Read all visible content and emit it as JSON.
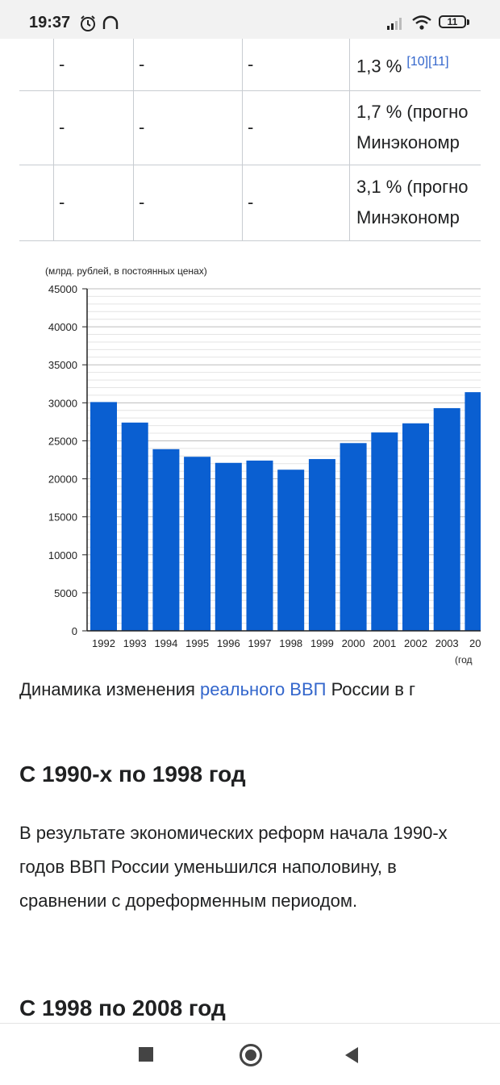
{
  "status_bar": {
    "time": "19:37",
    "battery": "11"
  },
  "table": {
    "rows": [
      {
        "c1": "-",
        "c2": "-",
        "c3": "-",
        "value": "1,3 %",
        "refs": "[10][11]",
        "note": ""
      },
      {
        "c1": "-",
        "c2": "-",
        "c3": "-",
        "value": "1,7 % (прогно",
        "refs": "",
        "note": "Минэкономр"
      },
      {
        "c1": "-",
        "c2": "-",
        "c3": "-",
        "value": "3,1 % (прогно",
        "refs": "",
        "note": "Минэкономр"
      }
    ]
  },
  "chart_data": {
    "type": "bar",
    "ylabel": "(млрд. рублей, в постоянных ценах)",
    "xlabel": "(год",
    "categories": [
      "1992",
      "1993",
      "1994",
      "1995",
      "1996",
      "1997",
      "1998",
      "1999",
      "2000",
      "2001",
      "2002",
      "2003",
      "200"
    ],
    "values": [
      30100,
      27400,
      23900,
      22900,
      22100,
      22400,
      21200,
      22600,
      24700,
      26100,
      27300,
      29300,
      31400
    ],
    "ylim": [
      0,
      45000
    ],
    "yticks": [
      "0",
      "5000",
      "10000",
      "15000",
      "20000",
      "25000",
      "30000",
      "35000",
      "40000",
      "45000"
    ],
    "bar_color": "#0a5fd1",
    "grid": true
  },
  "caption": {
    "before": "Динамика изменения ",
    "link": "реального ВВП",
    "after": " России в г"
  },
  "section1": {
    "heading": "С 1990-х по 1998 год",
    "paragraph": "В результате экономических реформ начала 1990-х годов ВВП России уменьшился наполовину, в сравнении с дореформенным периодом."
  },
  "section2": {
    "heading": "С 1998 по 2008 год"
  }
}
